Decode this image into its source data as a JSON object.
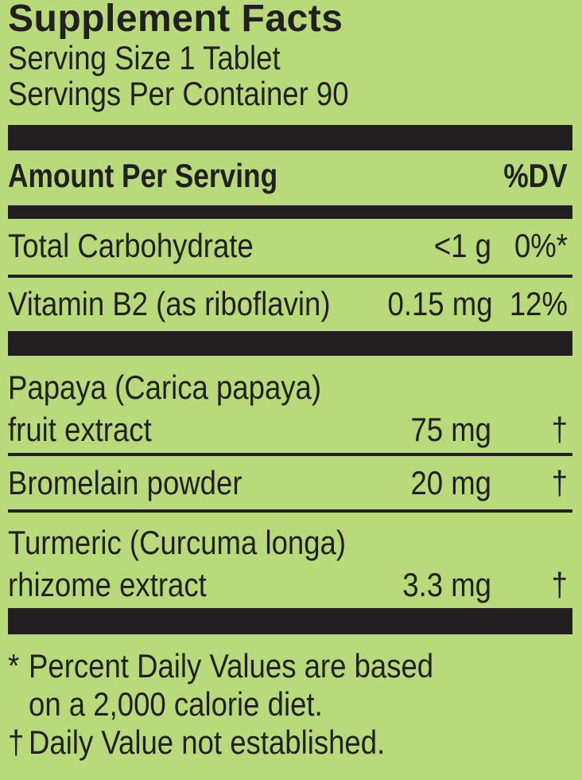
{
  "label": {
    "bg_color": "#b9da7b",
    "ink_color": "#221f20",
    "title": "Supplement Facts",
    "serving_size": "Serving Size 1 Tablet",
    "servings_per_container": "Servings Per Container 90",
    "header": {
      "amount_label": "Amount Per Serving",
      "dv_label": "%DV"
    },
    "rows": [
      {
        "name": "Total Carbohydrate",
        "amount": "<1 g",
        "dv": "0%*"
      },
      {
        "name": "Vitamin B2 (as riboflavin)",
        "amount": "0.15 mg",
        "dv": "12%"
      },
      {
        "name_line1": "Papaya (Carica papaya)",
        "name_line2": "fruit extract",
        "amount": "75 mg",
        "dv": "†"
      },
      {
        "name": "Bromelain powder",
        "amount": "20 mg",
        "dv": "†"
      },
      {
        "name_line1": "Turmeric (Curcuma longa)",
        "name_line2": "rhizome extract",
        "amount": "3.3 mg",
        "dv": "†"
      }
    ],
    "footnotes": [
      {
        "marker": "*",
        "line1": "Percent Daily Values are based",
        "line2": "on a 2,000 calorie diet."
      },
      {
        "marker": "†",
        "line1": "Daily Value not established."
      }
    ]
  }
}
